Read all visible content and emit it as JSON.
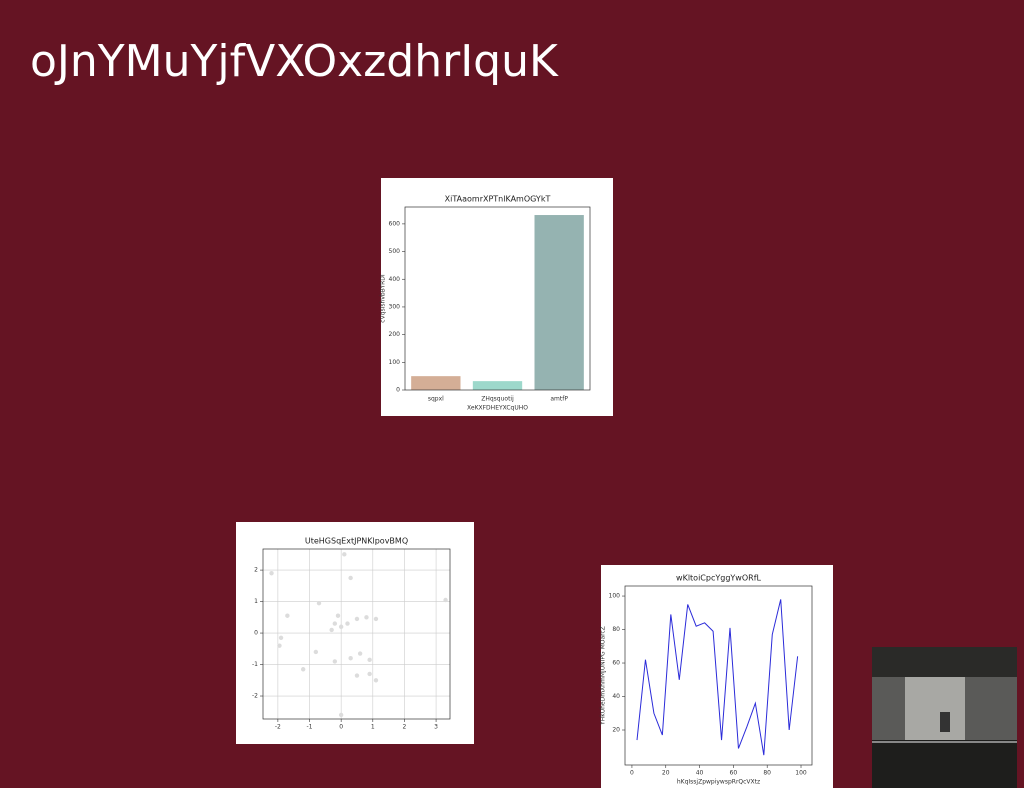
{
  "title": "oJnYMuYjfVXOxzdhrIquK",
  "chart_data": [
    {
      "type": "bar",
      "title": "XiTAaomrXPTnlKAmOGYkT",
      "x_label": "XeKXFDHEYXCqUHO",
      "y_label": "cVqsIshvbBYRDI",
      "categories": [
        "sqpxl",
        "ZHqsquotij",
        "amtfP"
      ],
      "values": [
        50,
        32,
        632
      ],
      "colors": [
        "#d4ae96",
        "#9dd8cb",
        "#95b3b1"
      ],
      "ylim": [
        0,
        661
      ],
      "yticks": [
        0,
        100,
        200,
        300,
        400,
        500,
        600
      ],
      "grid": false
    },
    {
      "type": "scatter",
      "title": "UteHGSqExtJPNKlpovBMQ",
      "color": "#dcdcdc",
      "x": [
        -2.2,
        -1.7,
        -1.9,
        -1.95,
        -1.2,
        -0.8,
        -0.7,
        -0.3,
        -0.2,
        -0.1,
        0.0,
        -0.2,
        0.0,
        0.1,
        0.2,
        0.3,
        0.3,
        0.5,
        0.6,
        0.5,
        0.8,
        0.9,
        0.9,
        1.1,
        1.1,
        3.3
      ],
      "y": [
        1.9,
        0.55,
        -0.15,
        -0.4,
        -1.15,
        -0.6,
        0.95,
        0.1,
        0.3,
        0.55,
        0.2,
        -0.9,
        -2.6,
        2.5,
        0.3,
        -0.8,
        1.75,
        0.45,
        -0.65,
        -1.35,
        0.5,
        -0.85,
        -1.3,
        -1.5,
        0.45,
        1.05
      ],
      "xlim": [
        -2.47,
        3.44
      ],
      "ylim": [
        -2.73,
        2.67
      ],
      "xticks": [
        -2,
        -1,
        0,
        1,
        2,
        3
      ],
      "yticks": [
        -2,
        -1,
        0,
        1,
        2
      ],
      "grid": true
    },
    {
      "type": "line",
      "title": "wKltoiCpcYggYwORfL",
      "x_label": "hKqIssjZpwpiywspRrQcVXtz",
      "y_label": "YHkUheDmXhmMJUNIPG MOarcZ",
      "color": "#2b2bd9",
      "x": [
        3,
        8,
        13,
        18,
        23,
        28,
        33,
        38,
        43,
        48,
        53,
        58,
        63,
        68,
        73,
        78,
        83,
        88,
        93,
        98
      ],
      "y": [
        14,
        62,
        30,
        17,
        89,
        50,
        95,
        82,
        84,
        79,
        14,
        81,
        9,
        22,
        36,
        5,
        77,
        98,
        20,
        64
      ],
      "xlim": [
        -4.1,
        106.5
      ],
      "ylim": [
        -0.9,
        106
      ],
      "xticks": [
        0,
        20,
        40,
        60,
        80,
        100
      ],
      "yticks": [
        20,
        40,
        60,
        80,
        100
      ],
      "grid": false
    }
  ]
}
